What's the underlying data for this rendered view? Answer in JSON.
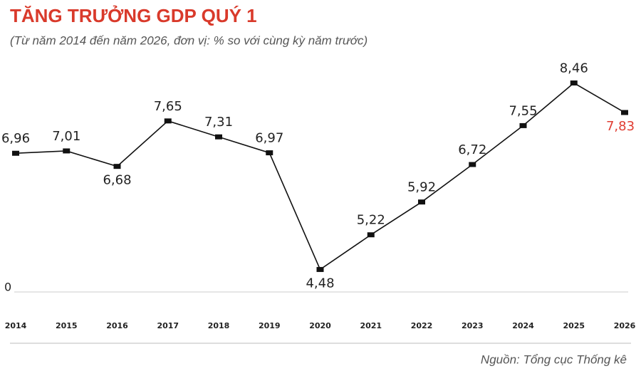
{
  "chart_data": {
    "type": "line",
    "title": "TĂNG TRƯỞNG GDP QUÝ 1",
    "subtitle": "(Từ năm 2014 đến năm 2026, đơn vị: % so với cùng kỳ năm trước)",
    "source": "Nguồn: Tổng cục Thống kê",
    "categories": [
      "2014",
      "2015",
      "2016",
      "2017",
      "2018",
      "2019",
      "2020",
      "2021",
      "2022",
      "2023",
      "2024",
      "2025",
      "2026"
    ],
    "series": [
      {
        "color": "#111111",
        "values": [
          6.96,
          7.01,
          6.68,
          7.65,
          7.31,
          6.97,
          4.48,
          5.22,
          5.92,
          6.72,
          7.55,
          8.46,
          7.83
        ],
        "value_labels": [
          "6,96",
          "7,01",
          "6,68",
          "7,65",
          "7,31",
          "6,97",
          "4,48",
          "5,22",
          "5,92",
          "6,72",
          "7,55",
          "8,46",
          "7,83"
        ]
      }
    ],
    "highlight_color": "#e03c31",
    "ylim": [
      4,
      9
    ],
    "yticks": [
      {
        "value": 4,
        "label": "0"
      }
    ]
  }
}
